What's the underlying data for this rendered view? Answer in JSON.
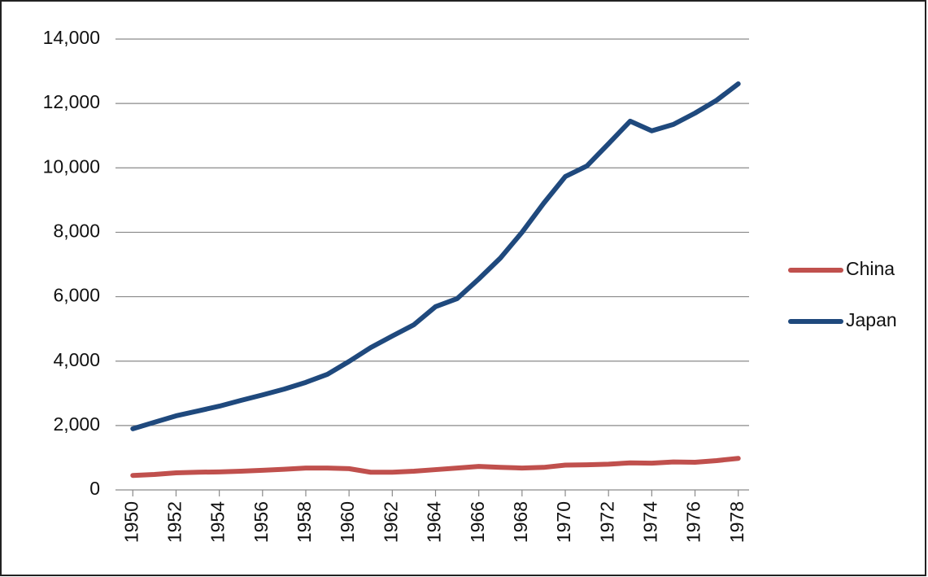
{
  "chart_data": {
    "type": "line",
    "x": [
      1950,
      1951,
      1952,
      1953,
      1954,
      1955,
      1956,
      1957,
      1958,
      1959,
      1960,
      1961,
      1962,
      1963,
      1964,
      1965,
      1966,
      1967,
      1968,
      1969,
      1970,
      1971,
      1972,
      1973,
      1974,
      1975,
      1976,
      1977,
      1978
    ],
    "series": [
      {
        "name": "China",
        "color": "#c0504d",
        "values": [
          450,
          480,
          530,
          550,
          560,
          580,
          610,
          640,
          680,
          680,
          660,
          550,
          550,
          580,
          630,
          680,
          730,
          700,
          680,
          700,
          770,
          780,
          800,
          840,
          830,
          870,
          860,
          910,
          980
        ]
      },
      {
        "name": "Japan",
        "color": "#1f497d",
        "values": [
          1900,
          2100,
          2300,
          2450,
          2600,
          2780,
          2950,
          3130,
          3340,
          3590,
          3990,
          4420,
          4780,
          5130,
          5690,
          5940,
          6550,
          7200,
          8000,
          8900,
          9730,
          10060,
          10750,
          11450,
          11150,
          11350,
          11700,
          12100,
          12610
        ]
      }
    ],
    "xlim": [
      1949.5,
      1978.5
    ],
    "xticks": [
      1950,
      1952,
      1954,
      1956,
      1958,
      1960,
      1962,
      1964,
      1966,
      1968,
      1970,
      1972,
      1974,
      1976,
      1978
    ],
    "ylim": [
      0,
      14000
    ],
    "yticks": [
      0,
      {
        "value": 2000,
        "label": "2,000"
      },
      {
        "value": 4000,
        "label": "4,000"
      },
      {
        "value": 6000,
        "label": "6,000"
      },
      {
        "value": 8000,
        "label": "8,000"
      },
      {
        "value": 10000,
        "label": "10,000"
      },
      {
        "value": 12000,
        "label": "12,000"
      },
      {
        "value": 14000,
        "label": "14,000"
      }
    ],
    "grid": true,
    "legend": "right"
  }
}
